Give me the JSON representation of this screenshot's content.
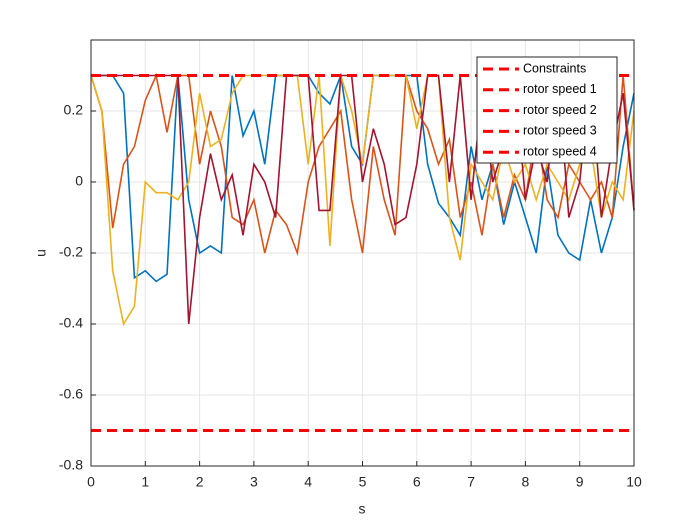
{
  "chart_data": {
    "type": "line",
    "xlabel": "s",
    "ylabel": "u",
    "x": [
      0,
      0.2,
      0.4,
      0.6,
      0.8,
      1,
      1.2,
      1.4,
      1.6,
      1.8,
      2,
      2.2,
      2.4,
      2.6,
      2.8,
      3,
      3.2,
      3.4,
      3.6,
      3.8,
      4,
      4.2,
      4.4,
      4.6,
      4.8,
      5,
      5.2,
      5.4,
      5.6,
      5.8,
      6,
      6.2,
      6.4,
      6.6,
      6.8,
      7,
      7.2,
      7.4,
      7.6,
      7.8,
      8,
      8.2,
      8.4,
      8.6,
      8.8,
      9,
      9.2,
      9.4,
      9.6,
      9.8,
      10
    ],
    "constraints": {
      "name": "Constraints",
      "color": "#ff0000",
      "values": [
        0.3,
        -0.7
      ]
    },
    "series": [
      {
        "name": "rotor speed 1",
        "color": "#0072bd",
        "values": [
          0.3,
          0.3,
          0.3,
          0.25,
          -0.27,
          -0.25,
          -0.28,
          -0.26,
          0.3,
          -0.05,
          -0.2,
          -0.18,
          -0.2,
          0.3,
          0.13,
          0.2,
          0.05,
          0.3,
          0.3,
          0.3,
          0.3,
          0.25,
          0.22,
          0.3,
          0.1,
          0.05,
          0.3,
          0.3,
          0.3,
          0.3,
          0.3,
          0.05,
          -0.06,
          -0.1,
          -0.15,
          0.1,
          -0.05,
          0.05,
          -0.12,
          0.0,
          -0.1,
          -0.2,
          0.05,
          -0.15,
          -0.2,
          -0.22,
          -0.05,
          -0.2,
          -0.1,
          0.1,
          0.25
        ]
      },
      {
        "name": "rotor speed 2",
        "color": "#d95319",
        "values": [
          0.3,
          0.2,
          -0.13,
          0.05,
          0.1,
          0.23,
          0.3,
          0.14,
          0.3,
          0.3,
          0.05,
          0.2,
          0.1,
          -0.1,
          -0.12,
          -0.05,
          -0.2,
          -0.08,
          -0.12,
          -0.2,
          0.0,
          0.1,
          0.15,
          0.2,
          -0.05,
          -0.2,
          0.1,
          -0.05,
          -0.15,
          0.3,
          0.2,
          0.15,
          0.05,
          0.12,
          -0.1,
          0.0,
          -0.15,
          0.05,
          -0.1,
          0.02,
          -0.05,
          0.15,
          -0.05,
          -0.1,
          0.05,
          0.0,
          -0.05,
          0.0,
          -0.1,
          0.3,
          -0.08
        ]
      },
      {
        "name": "rotor speed 3",
        "color": "#edb120",
        "values": [
          0.3,
          0.2,
          -0.25,
          -0.4,
          -0.35,
          0.0,
          -0.03,
          -0.03,
          -0.05,
          0.0,
          0.25,
          0.1,
          0.12,
          0.25,
          0.3,
          0.3,
          0.3,
          0.3,
          0.3,
          0.3,
          0.05,
          0.3,
          -0.18,
          0.3,
          0.2,
          0.05,
          0.3,
          0.3,
          0.3,
          0.3,
          0.15,
          0.3,
          0.3,
          -0.1,
          -0.22,
          0.05,
          0.0,
          -0.05,
          0.1,
          0.0,
          0.05,
          -0.05,
          0.05,
          0.0,
          -0.05,
          0.05,
          0.1,
          -0.1,
          0.0,
          -0.05,
          0.2
        ]
      },
      {
        "name": "rotor speed 4",
        "color": "#a2142f",
        "values": [
          0.3,
          0.3,
          0.3,
          0.3,
          0.3,
          0.3,
          0.3,
          0.3,
          0.3,
          -0.4,
          -0.1,
          0.08,
          -0.05,
          0.02,
          -0.15,
          0.05,
          0.0,
          -0.1,
          0.3,
          0.3,
          0.3,
          -0.08,
          -0.08,
          0.3,
          0.3,
          0.0,
          0.15,
          0.05,
          -0.12,
          -0.1,
          0.05,
          0.3,
          0.3,
          0.0,
          0.3,
          -0.05,
          0.25,
          0.0,
          0.1,
          0.3,
          -0.05,
          0.1,
          0.0,
          0.3,
          -0.1,
          0.0,
          0.3,
          -0.1,
          0.1,
          0.25,
          -0.08
        ]
      }
    ],
    "xlim": [
      0,
      10
    ],
    "xticks": [
      0,
      1,
      2,
      3,
      4,
      5,
      6,
      7,
      8,
      9,
      10
    ],
    "ylim": [
      -0.8,
      0.4
    ],
    "yticks": [
      -0.8,
      -0.6,
      -0.4,
      -0.2,
      0,
      0.2
    ],
    "grid": true,
    "legend": "northeast"
  }
}
